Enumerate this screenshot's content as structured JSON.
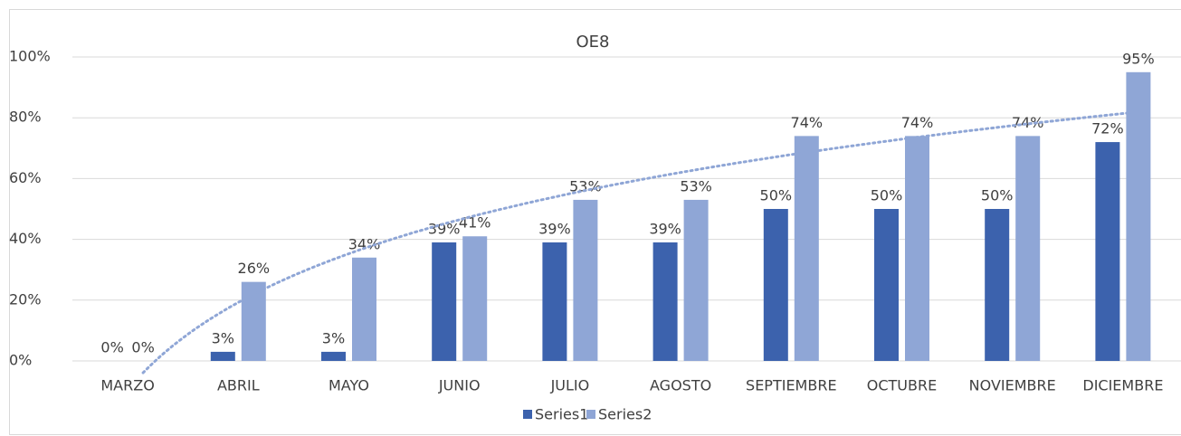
{
  "chart_data": {
    "type": "bar",
    "title": "OE8",
    "categories": [
      "MARZO",
      "ABRIL",
      "MAYO",
      "JUNIO",
      "JULIO",
      "AGOSTO",
      "SEPTIEMBRE",
      "OCTUBRE",
      "NOVIEMBRE",
      "DICIEMBRE"
    ],
    "series": [
      {
        "name": "Series1",
        "color": "#3c62ad",
        "values": [
          0,
          3,
          3,
          39,
          39,
          39,
          50,
          50,
          50,
          72
        ],
        "value_labels": [
          "0%",
          "3%",
          "3%",
          "39%",
          "39%",
          "39%",
          "50%",
          "50%",
          "50%",
          "72%"
        ]
      },
      {
        "name": "Series2",
        "color": "#8fa6d6",
        "values": [
          0,
          26,
          34,
          41,
          53,
          53,
          74,
          74,
          74,
          95
        ],
        "value_labels": [
          "0%",
          "26%",
          "34%",
          "41%",
          "53%",
          "53%",
          "74%",
          "74%",
          "74%",
          "95%"
        ],
        "trendline": "logarithmic"
      }
    ],
    "ylim": [
      0,
      100
    ],
    "yticks": [
      {
        "value": 0,
        "label": "0%"
      },
      {
        "value": 20,
        "label": "20%"
      },
      {
        "value": 40,
        "label": "40%"
      },
      {
        "value": 60,
        "label": "60%"
      },
      {
        "value": 80,
        "label": "80%"
      },
      {
        "value": 100,
        "label": "100%"
      }
    ],
    "grid": true,
    "legend": "bottom"
  }
}
